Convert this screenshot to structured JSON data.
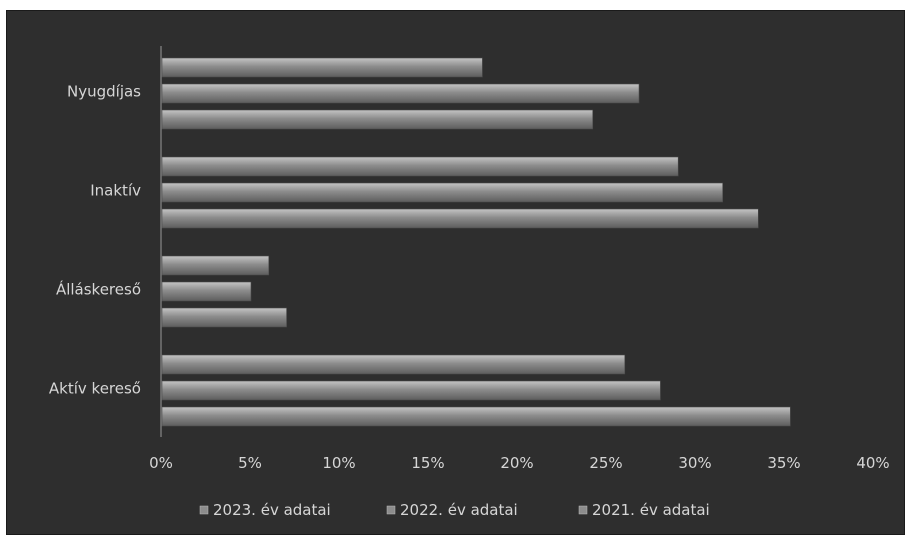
{
  "chart_data": {
    "type": "bar",
    "orientation": "horizontal",
    "categories": [
      "Aktív kereső",
      "Álláskereső",
      "Inaktív",
      "Nyugdíjas"
    ],
    "series": [
      {
        "name": "2023. év adatai",
        "values": [
          26,
          6,
          29,
          18
        ]
      },
      {
        "name": "2022. év adatai",
        "values": [
          28,
          5,
          31.5,
          26.8
        ]
      },
      {
        "name": "2021. év adatai",
        "values": [
          35.3,
          7,
          33.5,
          24.2
        ]
      }
    ],
    "x_ticks": [
      "0%",
      "5%",
      "10%",
      "15%",
      "20%",
      "25%",
      "30%",
      "35%",
      "40%"
    ],
    "xlim": [
      0,
      40
    ],
    "legend_position": "bottom",
    "grid": false,
    "colors": {
      "background": "#2e2e2e",
      "bar": "#8c8c8c",
      "text": "#d6d6d6",
      "axis": "#9a9a9a"
    }
  }
}
